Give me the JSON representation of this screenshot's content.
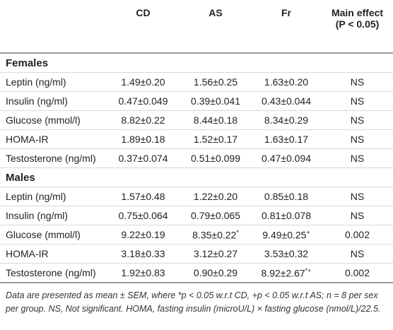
{
  "table": {
    "header": [
      "",
      "CD",
      "AS",
      "Fr",
      [
        "Main effect",
        "(P < 0.05)"
      ]
    ],
    "sections": [
      {
        "title": "Females",
        "rows": [
          [
            "Leptin (ng/ml)",
            "1.49±0.20",
            "1.56±0.25",
            "1.63±0.20",
            "NS"
          ],
          [
            "Insulin (ng/ml)",
            "0.47±0.049",
            "0.39±0.041",
            "0.43±0.044",
            "NS"
          ],
          [
            "Glucose (mmol/l)",
            "8.82±0.22",
            "8.44±0.18",
            "8.34±0.29",
            "NS"
          ],
          [
            "HOMA-IR",
            "1.89±0.18",
            "1.52±0.17",
            "1.63±0.17",
            "NS"
          ],
          [
            "Testosterone (ng/ml)",
            "0.37±0.074",
            "0.51±0.099",
            "0.47±0.094",
            "NS"
          ]
        ]
      },
      {
        "title": "Males",
        "rows": [
          [
            "Leptin (ng/ml)",
            "1.57±0.48",
            "1.22±0.20",
            "0.85±0.18",
            "NS"
          ],
          [
            "Insulin (ng/ml)",
            "0.75±0.064",
            "0.79±0.065",
            "0.81±0.078",
            "NS"
          ],
          [
            "Glucose (mmol/l)",
            "9.22±0.19",
            {
              "text": "8.35±0.22",
              "sup": "*"
            },
            {
              "text": "9.49±0.25",
              "sup": "+"
            },
            "0.002"
          ],
          [
            "HOMA-IR",
            "3.18±0.33",
            "3.12±0.27",
            "3.53±0.32",
            "NS"
          ],
          [
            "Testosterone (ng/ml)",
            "1.92±0.83",
            "0.90±0.29",
            {
              "text": "8.92±2.67",
              "sup": "*+"
            },
            "0.002"
          ]
        ]
      }
    ],
    "footnote": "Data are presented as mean ± SEM, where *p < 0.05 w.r.t CD, +p < 0.05 w.r.t AS; n = 8 per sex per group. NS, Not significant. HOMA, fasting insulin (microU/L) × fasting glucose (nmol/L)/22.5."
  }
}
